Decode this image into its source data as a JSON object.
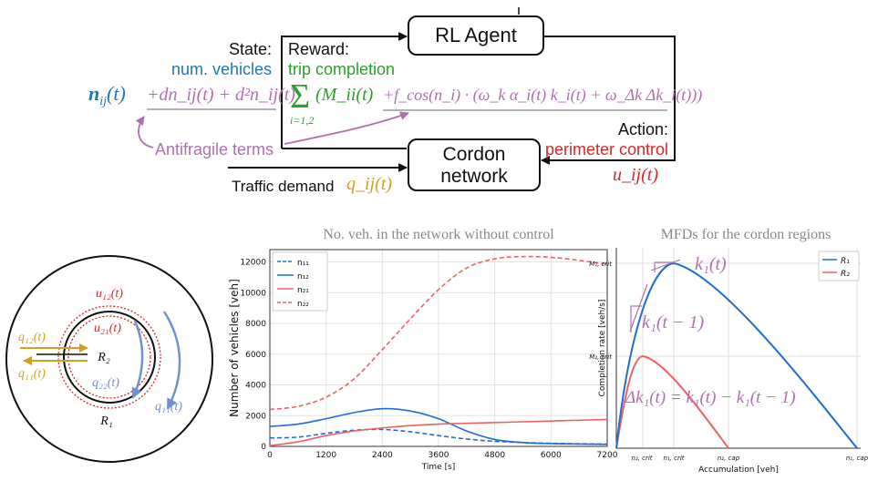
{
  "colors": {
    "blue": "#1f77b4",
    "red": "#d62728",
    "green": "#2ca02c",
    "purple": "#b070b0",
    "gold": "#d4a020",
    "gray": "#777777",
    "line_blue": "#1f6fd0",
    "line_red": "#ef6060",
    "ring_blue": "#7090d0"
  },
  "diagram": {
    "state_label": "State:",
    "num_vehicles": "num. vehicles",
    "n_ij": "n",
    "n_ij_sub": "ij",
    "n_ij_arg": "(t)",
    "antifragile_terms_expr": "+dn_ij(t) + d²n_ij(t)",
    "reward_label": "Reward:",
    "trip_completion": "trip completion",
    "reward_sum_index": "i=1,2",
    "reward_sum_term": "(M_ii(t)",
    "reward_cos_term": "+f_cos(n_i) · (ω_k α_i(t) k_i(t) + ω_Δk Δk_i(t)))",
    "antifragile_label": "Antifragile terms",
    "rl_agent": "RL Agent",
    "action_label": "Action:",
    "perimeter_control": "perimeter control",
    "u_ij": "u_ij(t)",
    "cordon_network_line1": "Cordon",
    "cordon_network_line2": "network",
    "traffic_demand": "Traffic demand",
    "q_ij": "q_ij(t)"
  },
  "cordon_map": {
    "u12": "u₁₂(t)",
    "u21": "u₂₁(t)",
    "q12": "q₁₂(t)",
    "q11_left": "q₁₁(t)",
    "q22": "q₂₂(t)",
    "q11_right": "q₁₁(t)",
    "R2": "R₂",
    "R1": "R₁"
  },
  "chart_data": [
    {
      "type": "line",
      "title": "No. veh. in the network without control",
      "xlabel": "Time [s]",
      "ylabel": "Number of vehicles [veh]",
      "xlim": [
        0,
        7200
      ],
      "ylim": [
        0,
        12800
      ],
      "x_ticks": [
        "0",
        "1200",
        "2400",
        "3600",
        "4800",
        "6000",
        "7200"
      ],
      "y_ticks": [
        "0",
        "2000",
        "4000",
        "6000",
        "8000",
        "10000",
        "12000"
      ],
      "grid": true,
      "legend": "top-left",
      "x": [
        0,
        600,
        1200,
        1800,
        2400,
        3000,
        3600,
        4200,
        4800,
        5400,
        6000,
        6600,
        7200
      ],
      "series": [
        {
          "name": "n₁₁",
          "style": "dashed",
          "color": "#1f6fd0",
          "values": [
            550,
            600,
            850,
            1050,
            1100,
            950,
            700,
            480,
            330,
            250,
            200,
            170,
            150
          ]
        },
        {
          "name": "n₁₂",
          "style": "solid",
          "color": "#1f6fd0",
          "values": [
            1300,
            1450,
            1800,
            2200,
            2450,
            2300,
            1800,
            1000,
            450,
            250,
            180,
            150,
            130
          ]
        },
        {
          "name": "n₂₁",
          "style": "solid",
          "color": "#ef6060",
          "values": [
            50,
            300,
            700,
            1000,
            1200,
            1350,
            1450,
            1500,
            1550,
            1600,
            1650,
            1700,
            1750
          ]
        },
        {
          "name": "n₂₂",
          "style": "dashed",
          "color": "#ef6060",
          "values": [
            2400,
            2600,
            3200,
            4400,
            6300,
            8300,
            10200,
            11600,
            12200,
            12350,
            12300,
            12100,
            11850
          ]
        }
      ]
    },
    {
      "type": "line",
      "title": "MFDs for the cordon regions",
      "xlabel": "Accumulation [veh]",
      "ylabel": "Completion rate [veh/s]",
      "x_ticks": [
        "n₂, crit",
        "n₁, crit",
        "n₂, cap",
        "n₁, cap"
      ],
      "y_ticks": [
        "M₁, crit",
        "M₂, crit"
      ],
      "grid": true,
      "legend": "top-right",
      "series": [
        {
          "name": "R₁",
          "color": "#1f6fd0",
          "critical_accumulation": "n₁, crit",
          "capacity": "n₁, cap",
          "peak": "M₁, crit"
        },
        {
          "name": "R₂",
          "color": "#ef6060",
          "critical_accumulation": "n₂, crit",
          "capacity": "n₂, cap",
          "peak": "M₂, crit"
        }
      ],
      "annotations": {
        "k1t": "k₁(t)",
        "k1t1": "k₁(t − 1)",
        "delta": "Δk₁(t) = k₁(t) − k₁(t − 1)"
      }
    }
  ]
}
